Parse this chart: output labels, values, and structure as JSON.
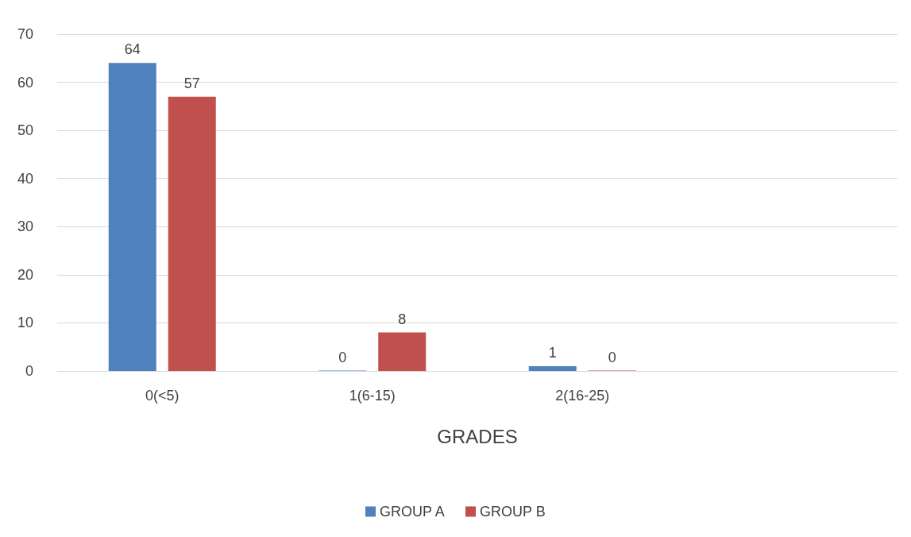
{
  "chart_data": {
    "type": "bar",
    "xlabel": "GRADES",
    "categories": [
      "0(<5)",
      "1(6-15)",
      "2(16-25)",
      null
    ],
    "series": [
      {
        "name": "GROUP A",
        "color": "#4f81bd",
        "values": [
          64,
          0,
          1,
          null
        ]
      },
      {
        "name": "GROUP B",
        "color": "#c0504d",
        "values": [
          57,
          8,
          0,
          null
        ]
      }
    ],
    "ylim": [
      0,
      70
    ],
    "yticks": [
      0,
      10,
      20,
      30,
      40,
      50,
      60,
      70
    ],
    "grid": "y",
    "legend": "bottom",
    "data_labels": true
  }
}
